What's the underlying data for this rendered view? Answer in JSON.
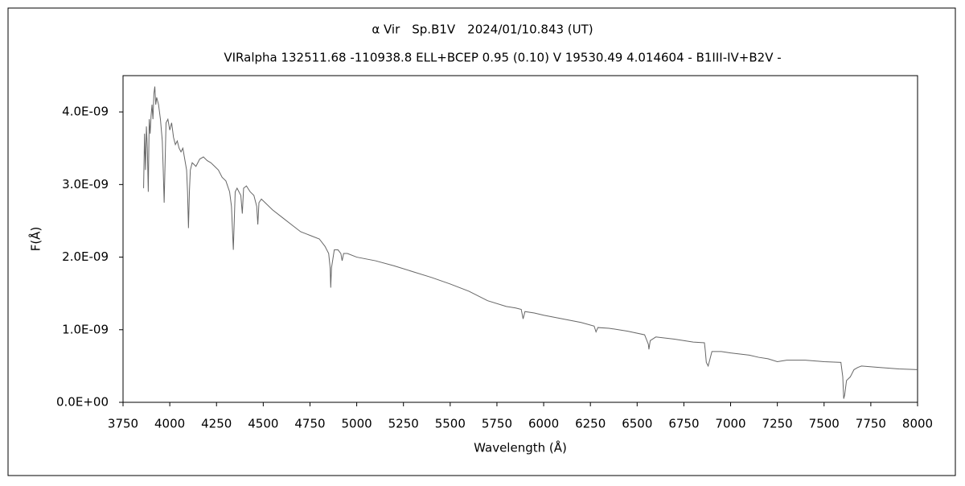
{
  "chart_data": {
    "type": "line",
    "title": "α Vir　Sp.B1V　2024/01/10.843 (UT)",
    "subtitle": "VIRalpha 132511.68 -110938.8 ELL+BCEP 0.95 (0.10) V 19530.49 4.014604 - B1III-IV+B2V -",
    "x_label": "Wavelength (Å)",
    "y_label": "F(Å)",
    "color": "#666666",
    "xlim": [
      3750,
      8000
    ],
    "xticks": [
      3750,
      4000,
      4250,
      4500,
      4750,
      5000,
      5250,
      5500,
      5750,
      6000,
      6250,
      6500,
      6750,
      7000,
      7250,
      7500,
      7750,
      8000
    ],
    "ylim": [
      0,
      4.5e-09
    ],
    "yticks": [
      {
        "value": 0,
        "label": "0.0E+00"
      },
      {
        "value": 1e-09,
        "label": "1.0E-09"
      },
      {
        "value": 2e-09,
        "label": "2.0E-09"
      },
      {
        "value": 3e-09,
        "label": "3.0E-09"
      },
      {
        "value": 4e-09,
        "label": "4.0E-09"
      }
    ],
    "x": [
      3860,
      3865,
      3870,
      3875,
      3880,
      3885,
      3890,
      3895,
      3900,
      3905,
      3910,
      3915,
      3920,
      3925,
      3930,
      3940,
      3950,
      3960,
      3965,
      3970,
      3975,
      3980,
      3990,
      4000,
      4010,
      4020,
      4030,
      4040,
      4050,
      4060,
      4070,
      4080,
      4090,
      4095,
      4100,
      4105,
      4110,
      4120,
      4140,
      4160,
      4180,
      4200,
      4220,
      4240,
      4260,
      4280,
      4300,
      4320,
      4330,
      4340,
      4345,
      4350,
      4360,
      4380,
      4388,
      4395,
      4410,
      4430,
      4450,
      4465,
      4471,
      4477,
      4490,
      4510,
      4550,
      4600,
      4650,
      4700,
      4750,
      4800,
      4830,
      4850,
      4858,
      4861,
      4865,
      4880,
      4900,
      4915,
      4922,
      4930,
      4950,
      5000,
      5100,
      5200,
      5300,
      5400,
      5500,
      5600,
      5700,
      5800,
      5850,
      5880,
      5890,
      5900,
      5950,
      6000,
      6100,
      6200,
      6270,
      6280,
      6290,
      6350,
      6450,
      6540,
      6560,
      6563,
      6570,
      6600,
      6700,
      6800,
      6860,
      6865,
      6870,
      6880,
      6900,
      6950,
      7000,
      7100,
      7150,
      7200,
      7250,
      7300,
      7400,
      7500,
      7590,
      7600,
      7605,
      7610,
      7620,
      7640,
      7660,
      7680,
      7700,
      7800,
      7900,
      8000
    ],
    "values": [
      2.95e-09,
      3.7e-09,
      3.2e-09,
      3.8e-09,
      3.5e-09,
      2.9e-09,
      3.9e-09,
      3.7e-09,
      3.95e-09,
      4.1e-09,
      3.9e-09,
      4.25e-09,
      4.35e-09,
      4.1e-09,
      4.2e-09,
      4.1e-09,
      3.9e-09,
      3.6e-09,
      3.2e-09,
      2.75e-09,
      3.3e-09,
      3.85e-09,
      3.9e-09,
      3.75e-09,
      3.85e-09,
      3.65e-09,
      3.55e-09,
      3.6e-09,
      3.5e-09,
      3.45e-09,
      3.5e-09,
      3.35e-09,
      3.2e-09,
      2.9e-09,
      2.4e-09,
      2.9e-09,
      3.2e-09,
      3.3e-09,
      3.25e-09,
      3.35e-09,
      3.38e-09,
      3.33e-09,
      3.3e-09,
      3.25e-09,
      3.2e-09,
      3.1e-09,
      3.05e-09,
      2.9e-09,
      2.7e-09,
      2.1e-09,
      2.5e-09,
      2.9e-09,
      2.95e-09,
      2.85e-09,
      2.6e-09,
      2.95e-09,
      2.98e-09,
      2.9e-09,
      2.85e-09,
      2.7e-09,
      2.45e-09,
      2.75e-09,
      2.8e-09,
      2.75e-09,
      2.65e-09,
      2.55e-09,
      2.45e-09,
      2.35e-09,
      2.3e-09,
      2.25e-09,
      2.15e-09,
      2.05e-09,
      1.85e-09,
      1.58e-09,
      1.85e-09,
      2.1e-09,
      2.1e-09,
      2.05e-09,
      1.95e-09,
      2.05e-09,
      2.05e-09,
      2e-09,
      1.95e-09,
      1.88e-09,
      1.8e-09,
      1.72e-09,
      1.63e-09,
      1.53e-09,
      1.4e-09,
      1.32e-09,
      1.3e-09,
      1.28e-09,
      1.15e-09,
      1.25e-09,
      1.23e-09,
      1.2e-09,
      1.15e-09,
      1.1e-09,
      1.05e-09,
      9.7e-10,
      1.03e-09,
      1.02e-09,
      9.8e-10,
      9.3e-10,
      8e-10,
      7.3e-10,
      8.5e-10,
      9e-10,
      8.7e-10,
      8.3e-10,
      8.2e-10,
      7e-10,
      5.5e-10,
      5e-10,
      7e-10,
      7e-10,
      6.8e-10,
      6.5e-10,
      6.2e-10,
      6e-10,
      5.6e-10,
      5.8e-10,
      5.8e-10,
      5.6e-10,
      5.5e-10,
      3.5e-10,
      5e-11,
      1e-10,
      3e-10,
      3.5e-10,
      4.5e-10,
      4.8e-10,
      5e-10,
      4.8e-10,
      4.6e-10,
      4.5e-10
    ]
  }
}
